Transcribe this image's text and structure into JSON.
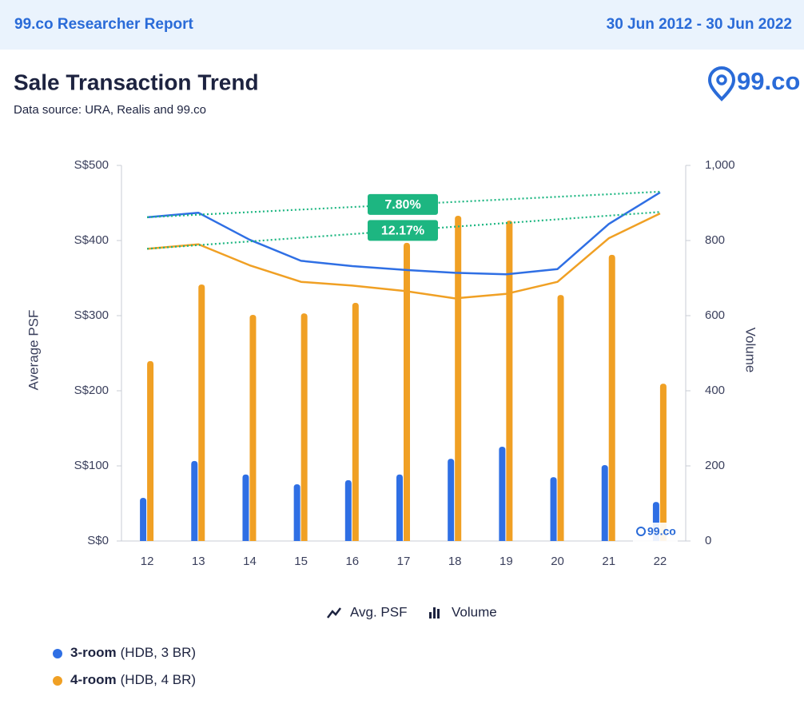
{
  "header": {
    "title": "99.co Researcher Report",
    "date_range": "30 Jun 2012 - 30 Jun 2022"
  },
  "report": {
    "title": "Sale Transaction Trend",
    "subtitle": "Data source: URA, Realis and 99.co",
    "logo": "99.co",
    "watermark": "99.co"
  },
  "chart_data": {
    "type": "combo",
    "categories": [
      "12",
      "13",
      "14",
      "15",
      "16",
      "17",
      "18",
      "19",
      "20",
      "21",
      "22"
    ],
    "y_label": "Average PSF",
    "y2_label": "Volume",
    "ylim": [
      0,
      500
    ],
    "yticks": [
      {
        "value": 0,
        "label": "S$0"
      },
      {
        "value": 100,
        "label": "S$100"
      },
      {
        "value": 200,
        "label": "S$200"
      },
      {
        "value": 300,
        "label": "S$300"
      },
      {
        "value": 400,
        "label": "S$400"
      },
      {
        "value": 500,
        "label": "S$500"
      }
    ],
    "y2lim": [
      0,
      1000
    ],
    "y2ticks": [
      0,
      200,
      400,
      600,
      800,
      {
        "value": 1000,
        "label": "1,000"
      }
    ],
    "mode_legend": [
      "Avg. PSF",
      "Volume"
    ],
    "series": [
      {
        "name": "3-room",
        "detail": "(HDB, 3 BR)",
        "color": "#2f6fe4",
        "psf": [
          431,
          437,
          401,
          373,
          366,
          361,
          357,
          355,
          362,
          422,
          464
        ],
        "volume": [
          115,
          213,
          177,
          151,
          162,
          177,
          219,
          251,
          170,
          202,
          104
        ],
        "trend": {
          "values": [
            431,
            465
          ],
          "label": "7.80%"
        }
      },
      {
        "name": "4-room",
        "detail": "(HDB, 4 BR)",
        "color": "#f0a024",
        "psf": [
          389,
          395,
          367,
          345,
          340,
          333,
          323,
          329,
          345,
          403,
          436
        ],
        "volume": [
          479,
          683,
          602,
          606,
          634,
          794,
          866,
          853,
          655,
          762,
          419
        ],
        "trend": {
          "values": [
            389,
            438
          ],
          "label": "12.17%"
        }
      }
    ]
  }
}
